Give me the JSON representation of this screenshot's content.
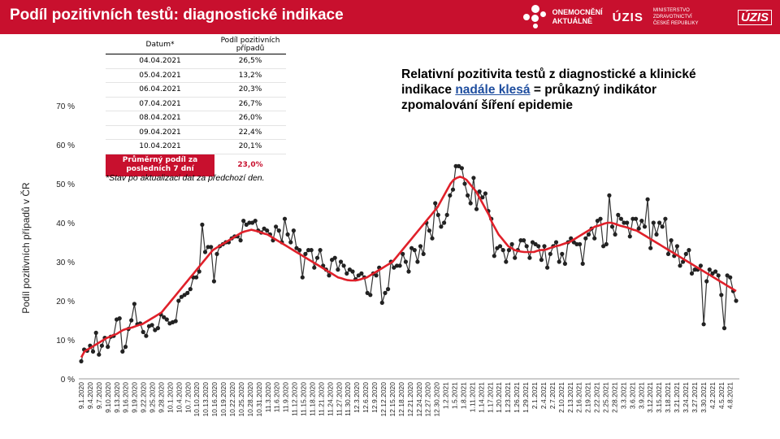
{
  "header": {
    "title": "Podíl pozitivních testů: diagnostické indikace"
  },
  "logos": {
    "oa_line1": "ONEMOCNĚNÍ",
    "oa_line2": "AKTUÁLNĚ",
    "uzis_mark": "ÚZIS",
    "mz_line1": "MINISTERSTVO ZDRAVOTNICTVÍ",
    "mz_line2": "ČESKÉ REPUBLIKY",
    "uzis_logo": "ÚZIS"
  },
  "table": {
    "col_date": "Datum*",
    "col_share": "Podíl pozitivních případů",
    "rows": [
      {
        "date": "04.04.2021",
        "value": "26,5%"
      },
      {
        "date": "05.04.2021",
        "value": "13,2%"
      },
      {
        "date": "06.04.2021",
        "value": "20,3%"
      },
      {
        "date": "07.04.2021",
        "value": "26,7%"
      },
      {
        "date": "08.04.2021",
        "value": "26,0%"
      },
      {
        "date": "09.04.2021",
        "value": "22,4%"
      },
      {
        "date": "10.04.2021",
        "value": "20,1%"
      }
    ],
    "avg_label": "Průměrný podíl za posledních 7 dní",
    "avg_value": "23,0%"
  },
  "note": "*Stav po aktualizaci dat za předchozí den.",
  "comment": {
    "part1": "Relativní pozitivita testů z diagnostické a klinické indikace ",
    "highlight": "nadále klesá",
    "part2": " = průkazný indikátor zpomalování šíření epidemie"
  },
  "chart_data": {
    "type": "line",
    "ylabel": "Podíl pozitivních případů v ČR",
    "ylim": [
      0,
      70
    ],
    "yticks": [
      "0 %",
      "10 %",
      "20 %",
      "30 %",
      "40 %",
      "50 %",
      "60 %",
      "70 %"
    ],
    "grid": false,
    "x_start": "2020-09-01",
    "x_end": "2021-04-10",
    "x_tick_labels": [
      "9.1.2020",
      "9.4.2020",
      "9.7.2020",
      "9.10.2020",
      "9.13.2020",
      "9.16.2020",
      "9.19.2020",
      "9.22.2020",
      "9.25.2020",
      "9.28.2020",
      "10.1.2020",
      "10.4.2020",
      "10.7.2020",
      "10.10.2020",
      "10.13.2020",
      "10.16.2020",
      "10.19.2020",
      "10.22.2020",
      "10.25.2020",
      "10.28.2020",
      "10.31.2020",
      "11.3.2020",
      "11.6.2020",
      "11.9.2020",
      "11.12.2020",
      "11.15.2020",
      "11.18.2020",
      "11.21.2020",
      "11.24.2020",
      "11.27.2020",
      "11.30.2020",
      "12.3.2020",
      "12.6.2020",
      "12.9.2020",
      "12.12.2020",
      "12.15.2020",
      "12.18.2020",
      "12.21.2020",
      "12.24.2020",
      "12.27.2020",
      "12.30.2020",
      "1.2.2021",
      "1.5.2021",
      "1.8.2021",
      "1.11.2021",
      "1.14.2021",
      "1.17.2021",
      "1.20.2021",
      "1.23.2021",
      "1.26.2021",
      "1.29.2021",
      "2.1.2021",
      "2.4.2021",
      "2.7.2021",
      "2.10.2021",
      "2.13.2021",
      "2.16.2021",
      "2.19.2021",
      "2.22.2021",
      "2.25.2021",
      "2.28.2021",
      "3.3.2021",
      "3.6.2021",
      "3.9.2021",
      "3.12.2021",
      "3.15.2021",
      "3.18.2021",
      "3.21.2021",
      "3.24.2021",
      "3.27.2021",
      "3.30.2021",
      "4.2.2021",
      "4.5.2021",
      "4.8.2021"
    ],
    "series": [
      {
        "color": "#333333",
        "style": "line-with-markers",
        "values": [
          4.5,
          7.5,
          7.2,
          8.5,
          7.0,
          11.8,
          6.2,
          8.5,
          10.5,
          8.2,
          10.8,
          11.0,
          15.2,
          15.5,
          7.0,
          8.2,
          12.8,
          15.0,
          19.2,
          14.0,
          14.2,
          12.0,
          11.0,
          13.5,
          13.8,
          12.5,
          13.0,
          16.5,
          15.8,
          15.2,
          14.2,
          14.5,
          14.8,
          20.0,
          21.0,
          21.5,
          22.0,
          23.0,
          26.0,
          26.0,
          27.5,
          39.5,
          32.5,
          33.8,
          33.8,
          25.0,
          32.0,
          34.0,
          34.5,
          35.0,
          35.0,
          36.0,
          36.5,
          36.5,
          35.5,
          40.5,
          39.5,
          40.0,
          40.0,
          40.5,
          38.0,
          37.5,
          38.5,
          38.0,
          37.0,
          35.5,
          39.0,
          38.0,
          35.0,
          41.0,
          37.0,
          35.0,
          38.0,
          33.5,
          33.0,
          26.0,
          32.0,
          33.0,
          33.0,
          28.5,
          31.0,
          33.0,
          29.0,
          28.0,
          26.5,
          30.5,
          31.0,
          28.0,
          30.0,
          29.0,
          27.0,
          28.0,
          27.5,
          25.5,
          26.5,
          27.0,
          26.0,
          22.0,
          21.5,
          27.0,
          26.5,
          28.5,
          19.5,
          22.0,
          23.0,
          30.0,
          28.5,
          29.0,
          29.0,
          32.0,
          30.0,
          27.5,
          33.5,
          33.0,
          30.0,
          34.0,
          32.0,
          40.0,
          38.0,
          36.0,
          45.0,
          42.0,
          39.0,
          40.0,
          42.0,
          47.0,
          48.5,
          54.5,
          54.5,
          54.0,
          50.0,
          47.0,
          45.0,
          51.5,
          43.5,
          48.0,
          46.5,
          47.5,
          43.0,
          41.0,
          31.5,
          33.5,
          34.0,
          33.0,
          30.0,
          33.0,
          34.5,
          31.0,
          33.0,
          35.5,
          35.5,
          34.0,
          31.0,
          35.0,
          34.5,
          34.0,
          30.5,
          34.0,
          28.5,
          32.0,
          34.0,
          35.0,
          30.0,
          32.0,
          29.5,
          35.0,
          36.0,
          35.0,
          34.5,
          34.5,
          29.5,
          36.0,
          37.0,
          38.5,
          36.0,
          40.5,
          41.0,
          34.0,
          34.5,
          47.0,
          39.0,
          37.0,
          42.0,
          41.0,
          40.0,
          40.0,
          36.5,
          41.0,
          41.0,
          38.5,
          40.5,
          39.0,
          46.0,
          33.5,
          40.0,
          37.0,
          40.0,
          39.0,
          41.0,
          32.0,
          35.5,
          31.5,
          34.0,
          29.0,
          30.0,
          32.0,
          33.0,
          27.0,
          28.0,
          28.0,
          29.0,
          14.0,
          25.0,
          28.0,
          27.0,
          27.5,
          26.5,
          21.5,
          13.0,
          26.5,
          26.0,
          22.5,
          20.0
        ]
      },
      {
        "color": "#e0202a",
        "style": "smooth-trend",
        "values": [
          5.5,
          7.0,
          7.5,
          8.0,
          8.5,
          9.0,
          9.5,
          10.0,
          10.5,
          10.8,
          11.2,
          11.5,
          12.0,
          12.5,
          12.8,
          13.0,
          13.2,
          13.5,
          13.8,
          14.0,
          14.5,
          15.0,
          15.5,
          16.0,
          16.5,
          17.0,
          18.0,
          19.0,
          20.0,
          21.0,
          22.0,
          23.0,
          24.0,
          25.0,
          26.0,
          27.0,
          28.0,
          29.0,
          30.0,
          31.0,
          32.0,
          33.0,
          33.5,
          34.0,
          34.5,
          35.0,
          35.5,
          36.0,
          36.5,
          37.0,
          37.5,
          37.8,
          38.0,
          38.2,
          38.0,
          37.8,
          37.5,
          37.2,
          37.0,
          36.5,
          36.0,
          35.5,
          35.0,
          34.5,
          34.0,
          33.5,
          33.0,
          32.5,
          32.0,
          31.5,
          31.0,
          30.5,
          30.0,
          29.5,
          29.0,
          28.5,
          28.0,
          27.5,
          27.0,
          26.5,
          26.0,
          25.8,
          25.5,
          25.3,
          25.2,
          25.2,
          25.3,
          25.5,
          25.8,
          26.0,
          26.5,
          27.0,
          27.5,
          28.0,
          28.5,
          29.0,
          29.5,
          30.0,
          31.0,
          32.0,
          33.0,
          34.0,
          35.0,
          36.0,
          37.0,
          38.0,
          39.0,
          40.0,
          41.0,
          42.0,
          43.0,
          44.0,
          45.5,
          47.0,
          48.5,
          50.0,
          51.0,
          51.5,
          51.8,
          51.5,
          51.0,
          50.0,
          49.0,
          48.0,
          46.5,
          45.0,
          43.5,
          42.0,
          40.0,
          38.5,
          37.0,
          36.0,
          35.0,
          34.0,
          33.5,
          33.0,
          32.8,
          32.6,
          32.5,
          32.5,
          32.5,
          32.5,
          32.8,
          33.0,
          33.0,
          33.2,
          33.5,
          33.8,
          34.0,
          34.2,
          34.5,
          34.8,
          35.0,
          35.5,
          36.0,
          36.5,
          37.0,
          37.5,
          38.0,
          38.5,
          39.0,
          39.2,
          39.5,
          39.8,
          40.0,
          40.0,
          39.8,
          39.5,
          39.2,
          39.0,
          38.8,
          38.5,
          38.2,
          38.0,
          37.5,
          37.0,
          36.5,
          36.0,
          35.5,
          35.0,
          34.5,
          34.0,
          33.5,
          33.0,
          32.5,
          32.0,
          31.5,
          31.0,
          30.5,
          30.0,
          29.5,
          29.0,
          28.5,
          28.0,
          27.5,
          27.0,
          26.5,
          26.0,
          25.5,
          25.0,
          24.5,
          24.0,
          23.5,
          23.0,
          22.5
        ]
      }
    ]
  }
}
